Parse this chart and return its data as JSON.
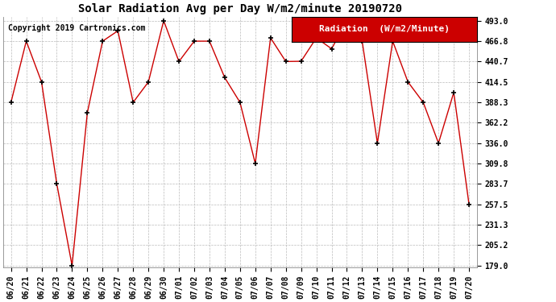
{
  "title": "Solar Radiation Avg per Day W/m2/minute 20190720",
  "copyright": "Copyright 2019 Cartronics.com",
  "legend_label": "Radiation  (W/m2/Minute)",
  "dates": [
    "06/20",
    "06/21",
    "06/22",
    "06/23",
    "06/24",
    "06/25",
    "06/26",
    "06/27",
    "06/28",
    "06/29",
    "06/30",
    "07/01",
    "07/02",
    "07/03",
    "07/04",
    "07/05",
    "07/06",
    "07/07",
    "07/08",
    "07/09",
    "07/10",
    "07/11",
    "07/12",
    "07/13",
    "07/14",
    "07/15",
    "07/16",
    "07/17",
    "07/18",
    "07/19",
    "07/20"
  ],
  "values": [
    388.3,
    466.8,
    414.5,
    283.7,
    179.0,
    375.0,
    466.8,
    480.0,
    388.3,
    414.5,
    493.0,
    440.7,
    466.8,
    466.8,
    420.0,
    388.3,
    309.8,
    471.0,
    440.7,
    441.0,
    471.0,
    457.0,
    493.0,
    466.8,
    336.0,
    466.8,
    414.5,
    388.3,
    336.0,
    401.0,
    257.5
  ],
  "ylim_min": 179.0,
  "ylim_max": 493.0,
  "yticks": [
    179.0,
    205.2,
    231.3,
    257.5,
    283.7,
    309.8,
    336.0,
    362.2,
    388.3,
    414.5,
    440.7,
    466.8,
    493.0
  ],
  "line_color": "#cc0000",
  "marker_color": "#000000",
  "bg_color": "#ffffff",
  "grid_color": "#bbbbbb",
  "legend_bg": "#cc0000",
  "legend_text_color": "#ffffff",
  "title_fontsize": 10,
  "copyright_fontsize": 7,
  "tick_fontsize": 7,
  "legend_fontsize": 8
}
